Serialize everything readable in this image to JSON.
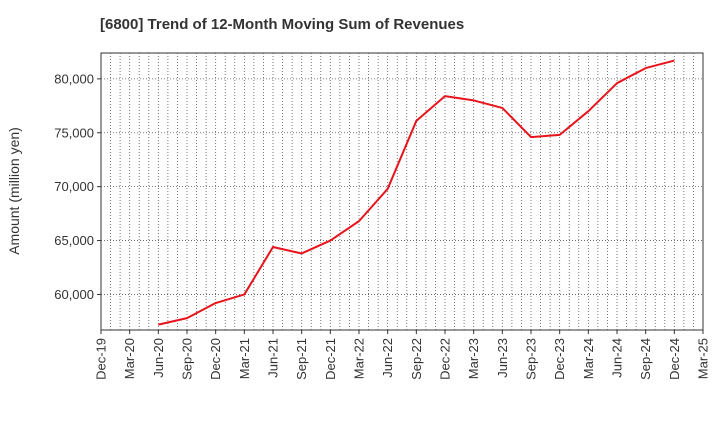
{
  "chart_data": {
    "type": "line",
    "title": "[6800]  Trend of 12-Month Moving Sum of Revenues",
    "ylabel": "Amount (million yen)",
    "xlabel": "",
    "x_tick_labels": [
      "Dec-19",
      "Mar-20",
      "Jun-20",
      "Sep-20",
      "Dec-20",
      "Mar-21",
      "Jun-21",
      "Sep-21",
      "Dec-21",
      "Mar-22",
      "Jun-22",
      "Sep-22",
      "Dec-22",
      "Mar-23",
      "Jun-23",
      "Sep-23",
      "Dec-23",
      "Mar-24",
      "Jun-24",
      "Sep-24",
      "Dec-24",
      "Mar-25"
    ],
    "y_ticks": [
      60000,
      65000,
      70000,
      75000,
      80000
    ],
    "y_tick_labels": [
      "60,000",
      "65,000",
      "70,000",
      "75,000",
      "80,000"
    ],
    "ylim": [
      56700,
      82400
    ],
    "grid": true,
    "series_color": "#e8141c",
    "series": [
      {
        "x": [
          "Jun-20",
          "Sep-20",
          "Dec-20",
          "Mar-21",
          "Jun-21",
          "Sep-21",
          "Dec-21",
          "Mar-22",
          "Jun-22",
          "Sep-22",
          "Dec-22",
          "Mar-23",
          "Jun-23",
          "Sep-23",
          "Dec-23",
          "Mar-24",
          "Jun-24",
          "Sep-24",
          "Dec-24"
        ],
        "values": [
          57200,
          57800,
          59200,
          60000,
          64400,
          63800,
          65000,
          66800,
          69800,
          76100,
          78400,
          78000,
          77300,
          74600,
          74800,
          77000,
          79600,
          81000,
          81700
        ]
      }
    ]
  }
}
